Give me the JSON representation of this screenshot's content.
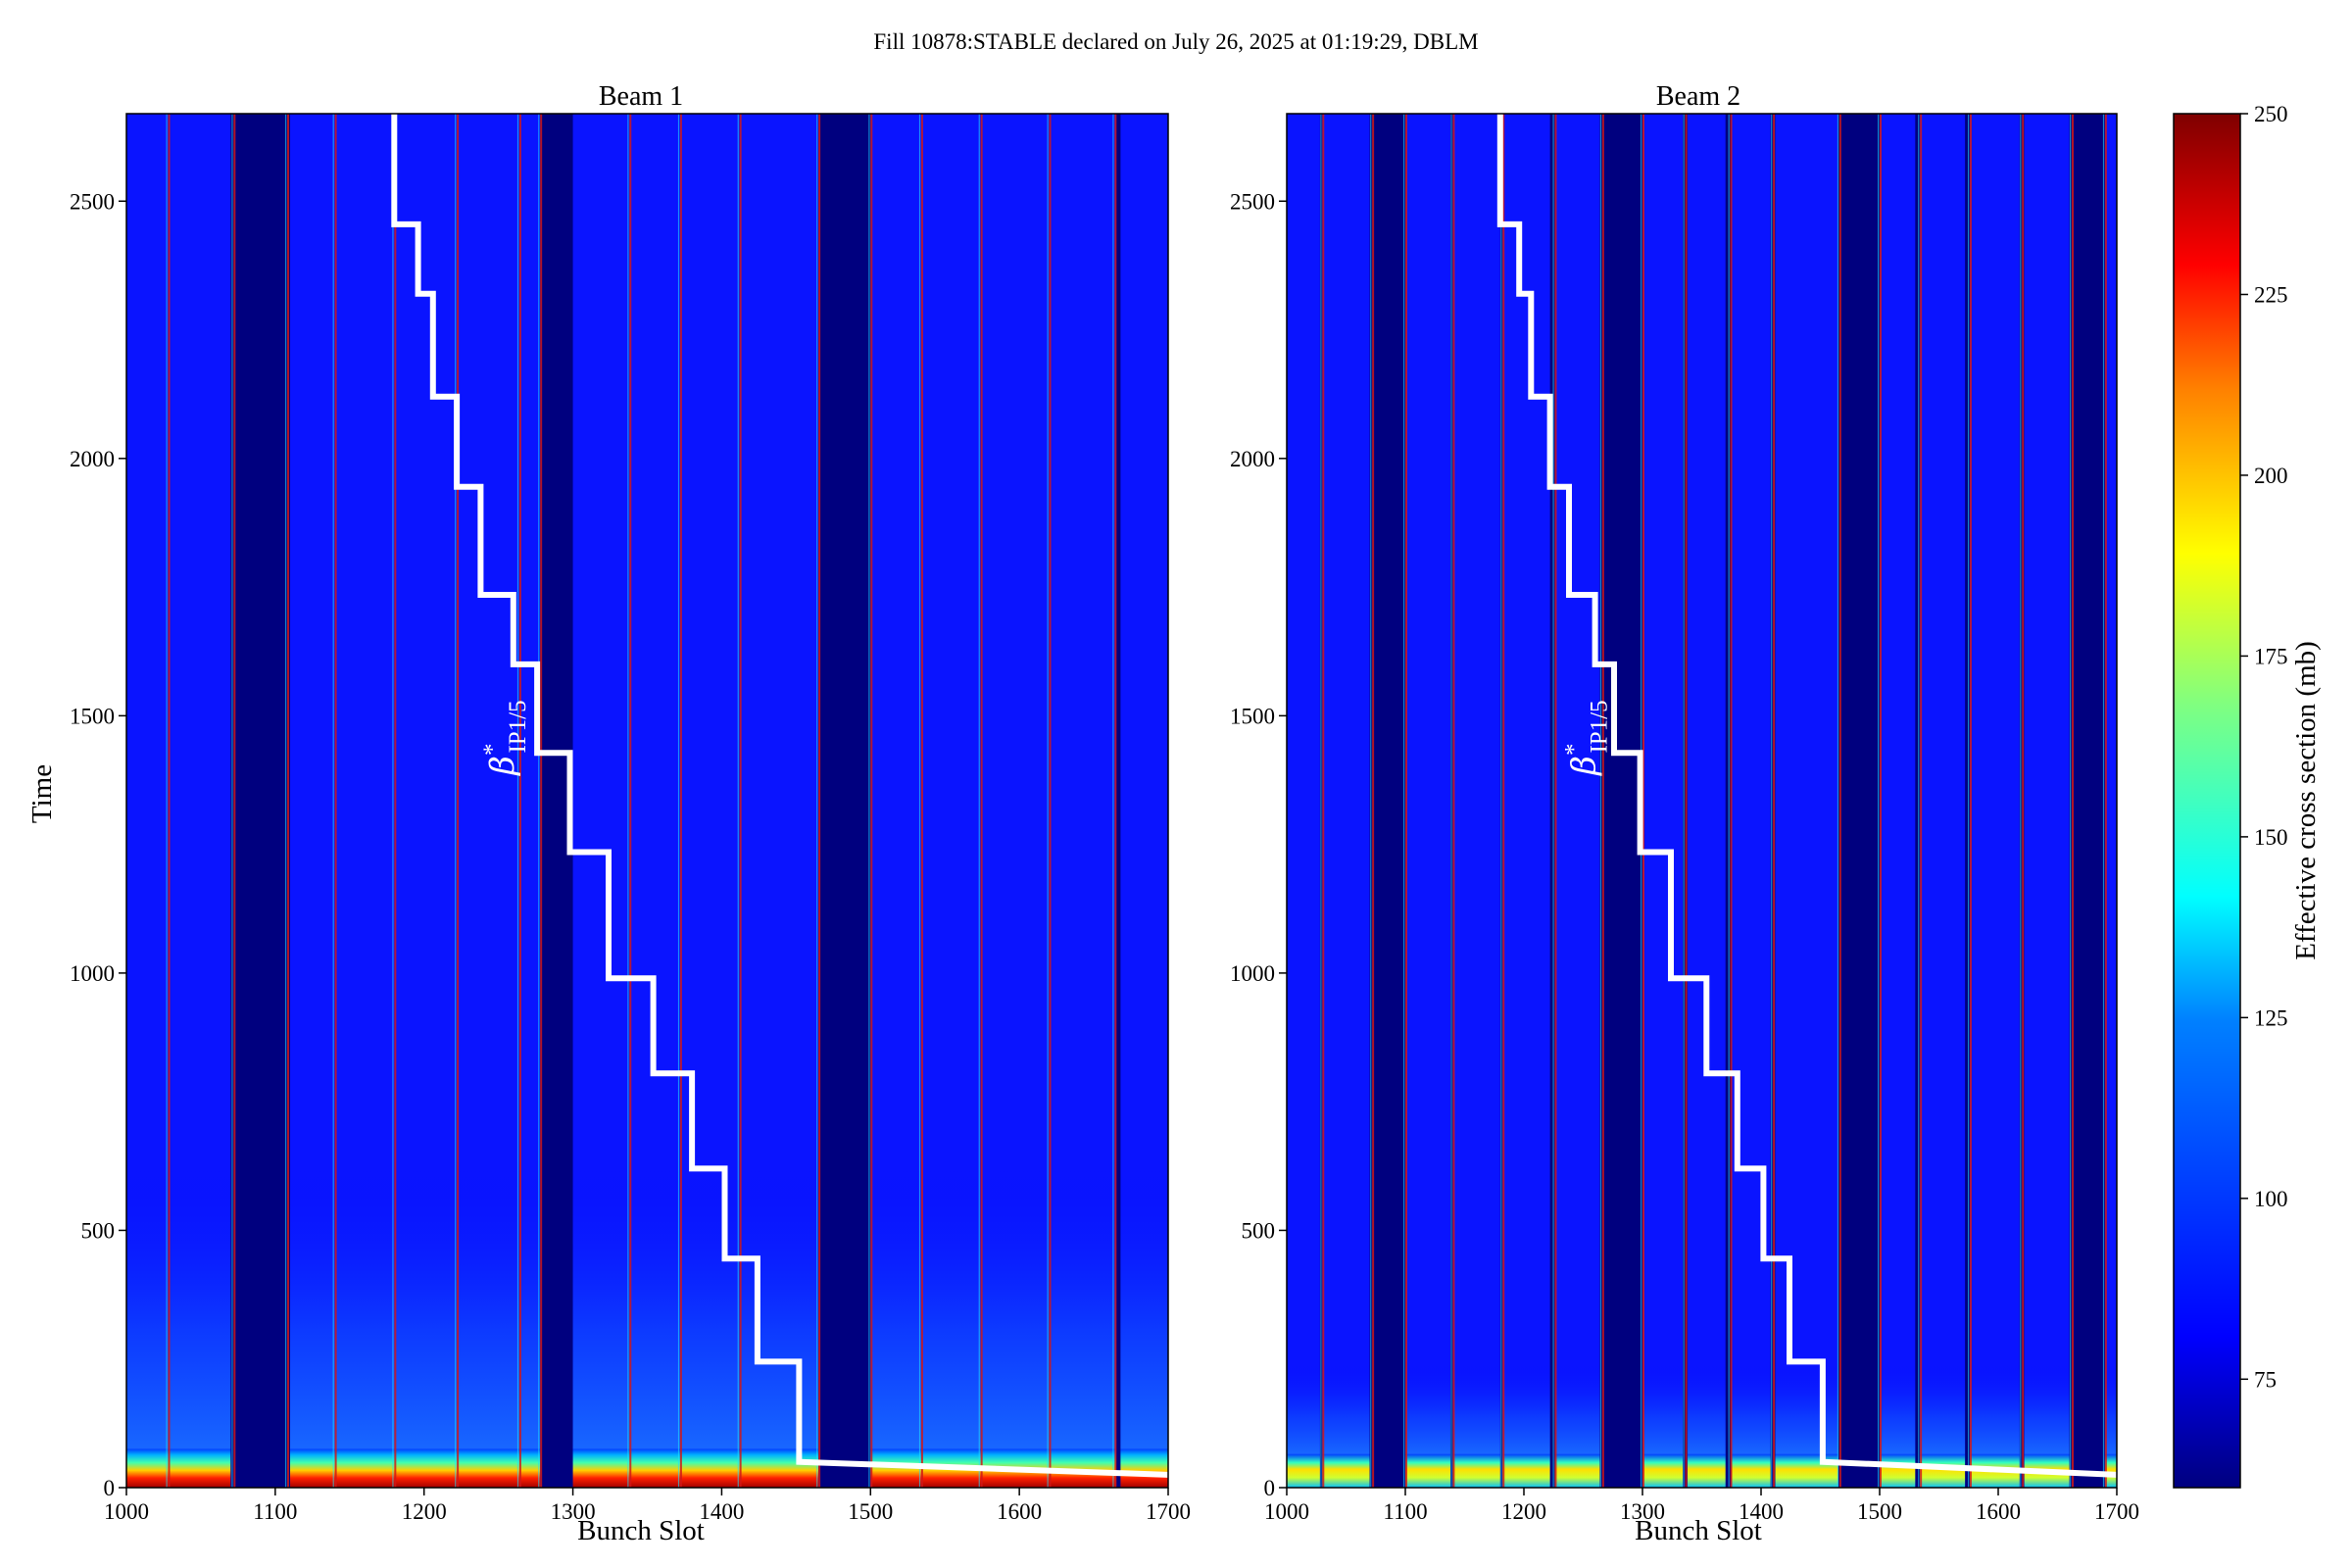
{
  "figure": {
    "suptitle": "Fill 10878:STABLE declared on July 26, 2025 at 01:19:29, DBLM"
  },
  "colorbar": {
    "label": "Effective cross section (mb)",
    "range": [
      60,
      250
    ],
    "ticks": [
      "75",
      "100",
      "125",
      "150",
      "175",
      "200",
      "225",
      "250"
    ],
    "tick_values": [
      75,
      100,
      125,
      150,
      175,
      200,
      225,
      250
    ],
    "colormap": "jet",
    "colors": [
      "#00007f",
      "#0000ff",
      "#0080ff",
      "#00ffff",
      "#80ff80",
      "#ffff00",
      "#ff8000",
      "#ff0000",
      "#7f0000"
    ]
  },
  "annotation": {
    "symbol": "β",
    "superscript": "*",
    "subscript": "IP1/5",
    "color": "#ffffff"
  },
  "chart_data": [
    {
      "type": "heatmap",
      "title": "Beam 1",
      "xlabel": "Bunch Slot",
      "ylabel": "Time",
      "xlim": [
        1000,
        1700
      ],
      "ylim": [
        0,
        2670
      ],
      "xticks": [
        "1000",
        "1100",
        "1200",
        "1300",
        "1400",
        "1500",
        "1600",
        "1700"
      ],
      "xtick_values": [
        1000,
        1100,
        1200,
        1300,
        1400,
        1500,
        1600,
        1700
      ],
      "yticks": [
        "0",
        "500",
        "1000",
        "1500",
        "2000",
        "2500"
      ],
      "ytick_values": [
        0,
        500,
        1000,
        1500,
        2000,
        2500
      ],
      "background_value": 68,
      "filled_value": 88,
      "bunch_trains": [
        [
          1000,
          1026
        ],
        [
          1035,
          1070
        ],
        [
          1030,
          1034
        ],
        [
          1110,
          1138
        ],
        [
          1145,
          1178
        ],
        [
          1186,
          1220
        ],
        [
          1228,
          1260
        ],
        [
          1268,
          1278
        ],
        [
          1300,
          1334
        ],
        [
          1340,
          1370
        ],
        [
          1375,
          1408
        ],
        [
          1415,
          1460
        ],
        [
          1500,
          1530
        ],
        [
          1535,
          1572
        ],
        [
          1578,
          1618
        ],
        [
          1624,
          1660
        ],
        [
          1668,
          1696
        ]
      ],
      "filled_ranges": [
        [
          1000,
          1070
        ],
        [
          1078,
          1082
        ],
        [
          1110,
          1278
        ],
        [
          1300,
          1465
        ],
        [
          1500,
          1665
        ],
        [
          1668,
          1700
        ]
      ],
      "empty_ranges": [
        [
          1072,
          1108
        ],
        [
          1280,
          1298
        ],
        [
          1467,
          1498
        ]
      ],
      "high_edge_slots": [
        1028,
        1072,
        1108,
        1140,
        1180,
        1222,
        1264,
        1278,
        1338,
        1372,
        1412,
        1465,
        1500,
        1534,
        1574,
        1620,
        1664
      ],
      "startup_hot_band": {
        "time": [
          0,
          75
        ],
        "value_range": [
          120,
          250
        ]
      },
      "decay_tail": {
        "time": [
          75,
          650
        ],
        "value": 100
      },
      "beta_steps": {
        "x": [
          1180,
          1180,
          1196,
          1196,
          1206,
          1206,
          1222,
          1222,
          1238,
          1238,
          1260,
          1260,
          1276,
          1276,
          1298,
          1298,
          1324,
          1324,
          1354,
          1354,
          1380,
          1380,
          1402,
          1402,
          1424,
          1424,
          1452,
          1452,
          1700
        ],
        "y": [
          2670,
          2455,
          2455,
          2320,
          2320,
          2120,
          2120,
          1945,
          1945,
          1735,
          1735,
          1600,
          1600,
          1428,
          1428,
          1235,
          1235,
          990,
          990,
          805,
          805,
          620,
          620,
          445,
          445,
          245,
          245,
          50,
          25
        ]
      }
    },
    {
      "type": "heatmap",
      "title": "Beam 2",
      "xlabel": "Bunch Slot",
      "ylabel": "",
      "xlim": [
        1000,
        1700
      ],
      "ylim": [
        0,
        2670
      ],
      "xticks": [
        "1000",
        "1100",
        "1200",
        "1300",
        "1400",
        "1500",
        "1600",
        "1700"
      ],
      "xtick_values": [
        1000,
        1100,
        1200,
        1300,
        1400,
        1500,
        1600,
        1700
      ],
      "yticks": [
        "0",
        "500",
        "1000",
        "1500",
        "2000",
        "2500"
      ],
      "ytick_values": [
        0,
        500,
        1000,
        1500,
        2000,
        2500
      ],
      "background_value": 68,
      "filled_value": 88,
      "filled_ranges": [
        [
          1000,
          1028
        ],
        [
          1030,
          1070
        ],
        [
          1100,
          1138
        ],
        [
          1140,
          1180
        ],
        [
          1182,
          1222
        ],
        [
          1226,
          1264
        ],
        [
          1300,
          1334
        ],
        [
          1338,
          1370
        ],
        [
          1375,
          1408
        ],
        [
          1412,
          1465
        ],
        [
          1500,
          1530
        ],
        [
          1534,
          1572
        ],
        [
          1576,
          1618
        ],
        [
          1622,
          1660
        ],
        [
          1690,
          1700
        ]
      ],
      "empty_ranges": [
        [
          1070,
          1098
        ],
        [
          1266,
          1298
        ],
        [
          1468,
          1498
        ],
        [
          1662,
          1688
        ]
      ],
      "high_edge_slots": [
        1030,
        1072,
        1100,
        1140,
        1182,
        1226,
        1266,
        1300,
        1336,
        1374,
        1410,
        1466,
        1500,
        1534,
        1576,
        1620,
        1662,
        1690
      ],
      "startup_hot_band": {
        "time": [
          0,
          65
        ],
        "value_range": [
          110,
          200
        ]
      },
      "decay_tail": {
        "time": [
          65,
          250
        ],
        "value": 95
      },
      "beta_steps": {
        "x": [
          1180,
          1180,
          1196,
          1196,
          1206,
          1206,
          1222,
          1222,
          1238,
          1238,
          1260,
          1260,
          1276,
          1276,
          1298,
          1298,
          1324,
          1324,
          1354,
          1354,
          1380,
          1380,
          1402,
          1402,
          1424,
          1424,
          1452,
          1452,
          1700
        ],
        "y": [
          2670,
          2455,
          2455,
          2320,
          2320,
          2120,
          2120,
          1945,
          1945,
          1735,
          1735,
          1600,
          1600,
          1428,
          1428,
          1235,
          1235,
          990,
          990,
          805,
          805,
          620,
          620,
          445,
          445,
          245,
          245,
          50,
          25
        ]
      }
    }
  ]
}
